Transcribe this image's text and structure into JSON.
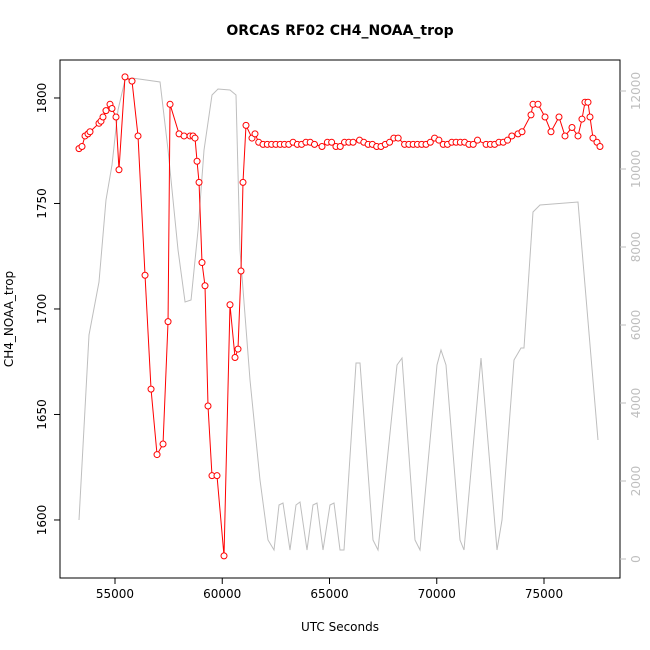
{
  "chart_data": {
    "type": "line",
    "title": "ORCAS RF02 CH4_NOAA_trop",
    "x_label": "UTC Seconds",
    "y_label": "CH4_NOAA_trop",
    "xlim": [
      52436,
      78543
    ],
    "ylim": [
      1572.5,
      1818
    ],
    "y2lim": [
      -487,
      12795
    ],
    "xticks": [
      55000,
      60000,
      65000,
      70000,
      75000
    ],
    "yticks": [
      1600,
      1650,
      1700,
      1750,
      1800
    ],
    "y2ticks": [
      0,
      2000,
      4000,
      6000,
      8000,
      10000,
      12000
    ],
    "series": [
      {
        "name": "CH4_NOAA_trop",
        "color": "#ff0000",
        "markers": true,
        "x": [
          53322,
          53462,
          53602,
          53741,
          53835,
          54254,
          54347,
          54440,
          54580,
          54767,
          54860,
          55047,
          55186,
          55466,
          55793,
          56073,
          56400,
          56680,
          56960,
          57239,
          57473,
          57566,
          57986,
          58219,
          58499,
          58638,
          58731,
          58825,
          58918,
          59056,
          59196,
          59336,
          59522,
          59755,
          60082,
          60361,
          60595,
          60734,
          60874,
          60967,
          61107,
          61387,
          61527,
          61700,
          61900,
          62100,
          62300,
          62500,
          62700,
          62900,
          63100,
          63300,
          63500,
          63700,
          63900,
          64100,
          64300,
          64650,
          64900,
          65100,
          65300,
          65500,
          65700,
          65900,
          66100,
          66400,
          66600,
          66800,
          67000,
          67200,
          67400,
          67600,
          67800,
          68000,
          68200,
          68500,
          68700,
          68900,
          69100,
          69300,
          69500,
          69700,
          69900,
          70100,
          70300,
          70500,
          70700,
          70900,
          71100,
          71300,
          71500,
          71700,
          71900,
          72300,
          72500,
          72700,
          72900,
          73100,
          73300,
          73500,
          73788,
          73975,
          74394,
          74487,
          74720,
          75047,
          75326,
          75699,
          75979,
          76305,
          76585,
          76771,
          76911,
          77051,
          77144,
          77283,
          77470,
          77610
        ],
        "values": [
          1776,
          1777,
          1782,
          1783,
          1784,
          1788,
          1789,
          1791,
          1794,
          1797,
          1795,
          1791,
          1766,
          1810,
          1808,
          1782,
          1716,
          1662,
          1631,
          1636,
          1694,
          1797,
          1783,
          1782,
          1782,
          1782,
          1781,
          1770,
          1760,
          1722,
          1711,
          1654,
          1621,
          1621,
          1583,
          1702,
          1677,
          1681,
          1718,
          1760,
          1787,
          1781,
          1783,
          1779,
          1778,
          1778,
          1778,
          1778,
          1778,
          1778,
          1778,
          1779,
          1778,
          1778,
          1779,
          1779,
          1778,
          1777,
          1779,
          1779,
          1777,
          1777,
          1779,
          1779,
          1779,
          1780,
          1779,
          1778,
          1778,
          1777,
          1777,
          1778,
          1779,
          1781,
          1781,
          1778,
          1778,
          1778,
          1778,
          1778,
          1778,
          1779,
          1781,
          1780,
          1778,
          1778,
          1779,
          1779,
          1779,
          1779,
          1778,
          1778,
          1780,
          1778,
          1778,
          1778,
          1779,
          1779,
          1780,
          1782,
          1783,
          1784,
          1792,
          1797,
          1797,
          1791,
          1784,
          1791,
          1782,
          1786,
          1782,
          1790,
          1798,
          1798,
          1791,
          1781,
          1779,
          1777
        ]
      },
      {
        "color": "#bebebe",
        "axis": "y2",
        "x": [
          53322,
          53788,
          54254,
          54580,
          54860,
          55140,
          55466,
          55793,
          57100,
          57473,
          57939,
          58266,
          58545,
          58872,
          59150,
          59522,
          59802,
          60361,
          60641,
          60827,
          61294,
          61760,
          62133,
          62413,
          62646,
          62832,
          63158,
          63438,
          63625,
          63951,
          64230,
          64417,
          64697,
          65023,
          65210,
          65490,
          65676,
          66236,
          66422,
          67028,
          67261,
          68147,
          68380,
          68986,
          69219,
          70011,
          70198,
          70431,
          71084,
          71270,
          72063,
          72809,
          73042,
          73601,
          73928,
          74067,
          74487,
          74813,
          76585,
          77517
        ],
        "values": [
          1000,
          5744,
          7103,
          9205,
          10103,
          11513,
          12282,
          12333,
          12231,
          10487,
          7923,
          6590,
          6641,
          8436,
          10487,
          11897,
          12051,
          12026,
          11897,
          7923,
          4590,
          2026,
          487,
          231,
          1385,
          1436,
          231,
          1385,
          1462,
          231,
          1385,
          1436,
          231,
          1385,
          1436,
          231,
          231,
          5026,
          5026,
          487,
          231,
          4974,
          5154,
          487,
          231,
          4974,
          5359,
          4974,
          487,
          231,
          5154,
          231,
          1000,
          5103,
          5410,
          5410,
          8897,
          9077,
          9154,
          3051
        ]
      }
    ]
  }
}
